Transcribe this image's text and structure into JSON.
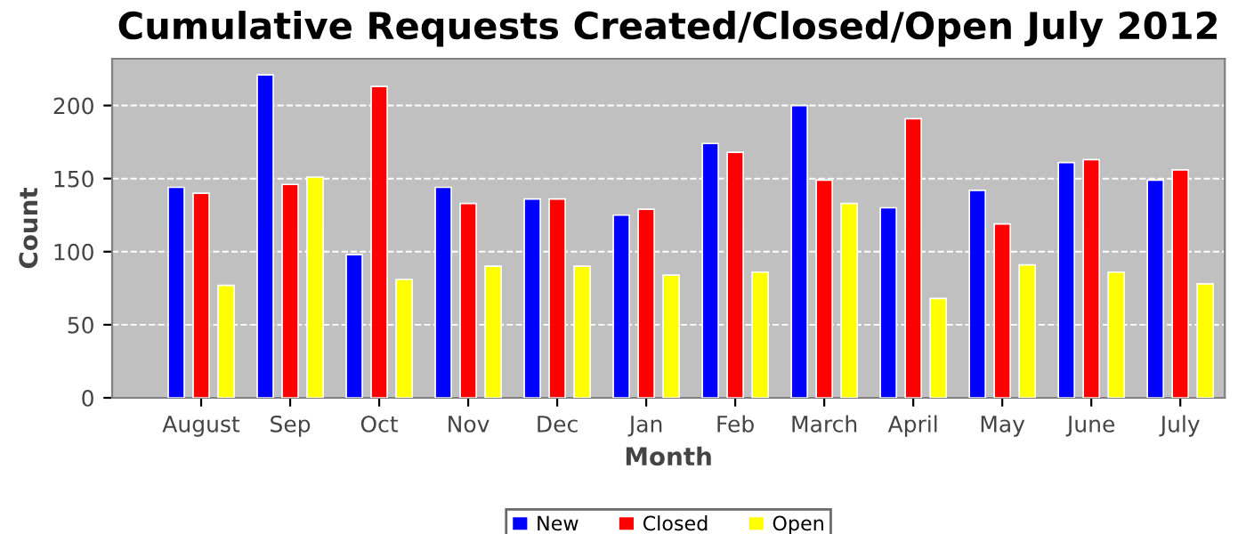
{
  "chart_data": {
    "type": "bar",
    "title": "Cumulative Requests Created/Closed/Open July 2012",
    "xlabel": "Month",
    "ylabel": "Count",
    "categories": [
      "August",
      "Sep",
      "Oct",
      "Nov",
      "Dec",
      "Jan",
      "Feb",
      "March",
      "April",
      "May",
      "June",
      "July"
    ],
    "series": [
      {
        "name": "New",
        "color": "#0000ff",
        "values": [
          144,
          221,
          98,
          144,
          136,
          125,
          174,
          200,
          130,
          142,
          161,
          149
        ]
      },
      {
        "name": "Closed",
        "color": "#ff0000",
        "values": [
          140,
          146,
          213,
          133,
          136,
          129,
          168,
          149,
          191,
          119,
          163,
          156
        ]
      },
      {
        "name": "Open",
        "color": "#ffff00",
        "values": [
          77,
          151,
          81,
          90,
          90,
          84,
          86,
          133,
          68,
          91,
          86,
          78
        ]
      }
    ],
    "ylim": [
      0,
      232
    ],
    "yticks": [
      0,
      50,
      100,
      150,
      200
    ],
    "grid": "y",
    "legend": "bottom"
  }
}
